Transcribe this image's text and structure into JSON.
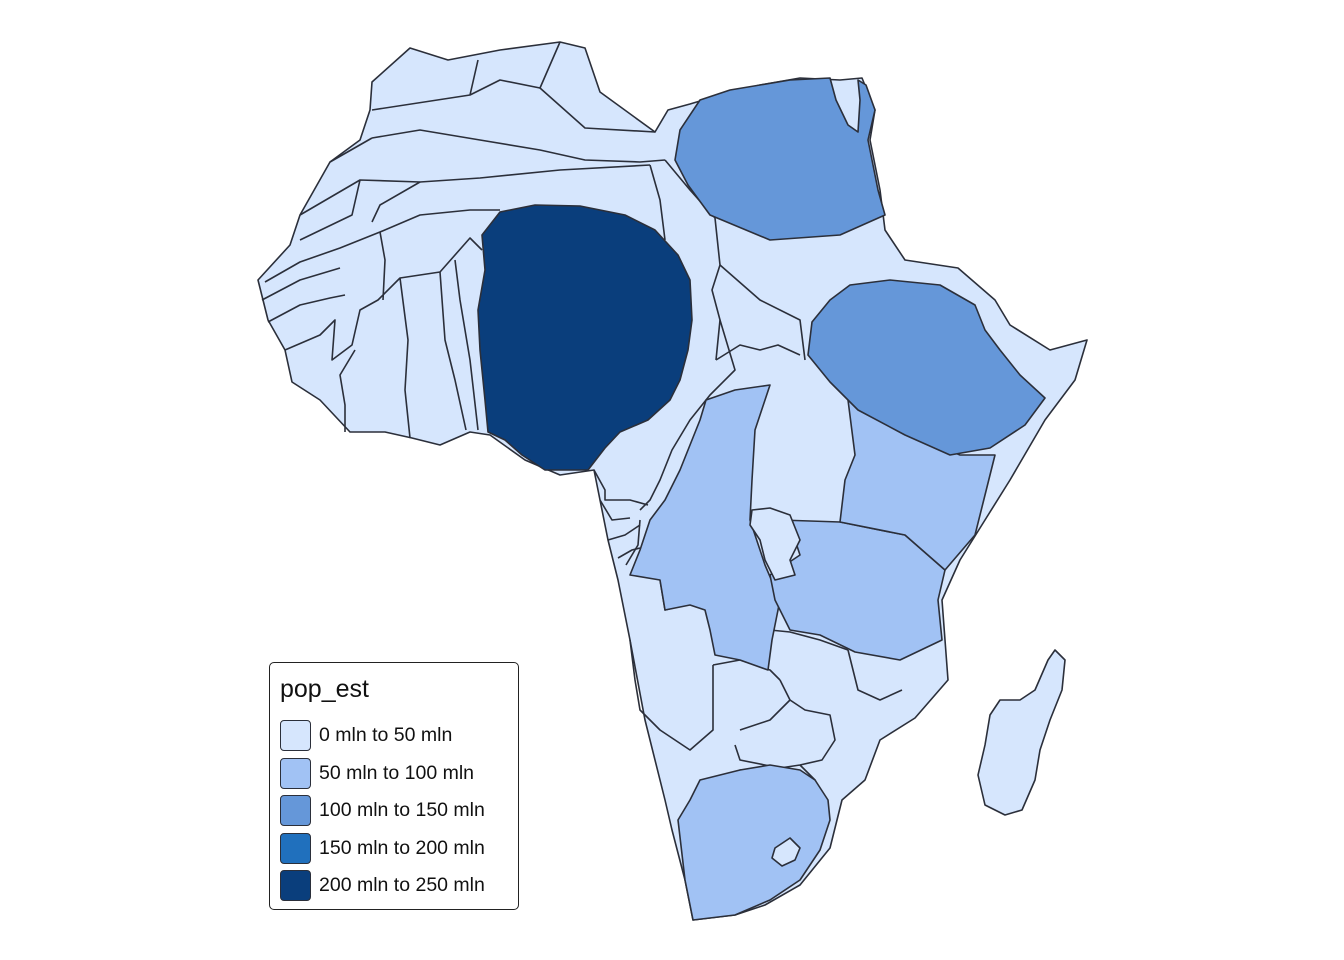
{
  "legend": {
    "title": "pop_est",
    "items": [
      {
        "label": "0 mln to 50 mln",
        "color": "#d6e6fd"
      },
      {
        "label": "50 mln to 100 mln",
        "color": "#a1c2f4"
      },
      {
        "label": "100 mln to 150 mln",
        "color": "#6597d9"
      },
      {
        "label": "150 mln to 200 mln",
        "color": "#2070bd"
      },
      {
        "label": "200 mln to 250 mln",
        "color": "#0a3e7c"
      }
    ]
  }
}
